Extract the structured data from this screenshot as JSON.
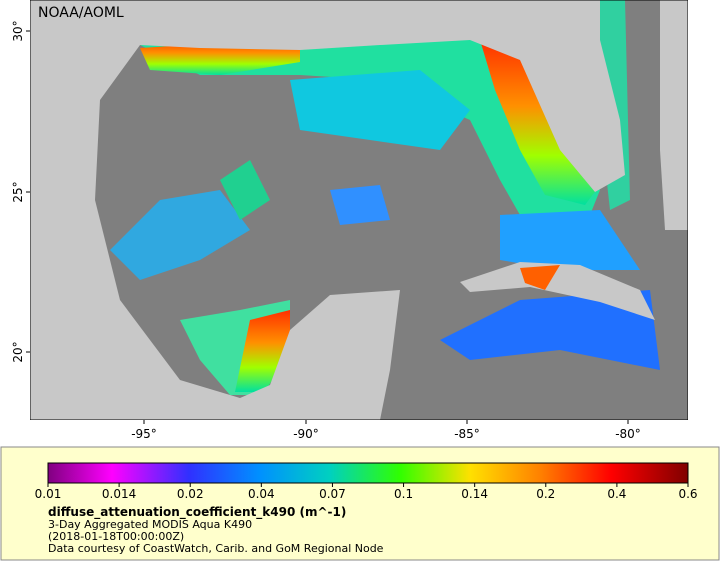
{
  "map": {
    "credit": "NOAA/AOML",
    "lat_labels": [
      "30°",
      "25°",
      "20°"
    ],
    "lon_labels": [
      "-95°",
      "-90°",
      "-85°",
      "-80°"
    ]
  },
  "colorbar": {
    "ticks": [
      "0.01",
      "0.014",
      "0.02",
      "0.04",
      "0.07",
      "0.1",
      "0.14",
      "0.2",
      "0.4",
      "0.6"
    ]
  },
  "legend": {
    "title": "diffuse_attenuation_coefficient_k490 (m^-1)",
    "lines": [
      "3-Day Aggregated MODIS Aqua K490",
      "(2018-01-18T00:00:00Z)",
      "Data courtesy of CoastWatch, Carib. and GoM Regional Node"
    ]
  }
}
